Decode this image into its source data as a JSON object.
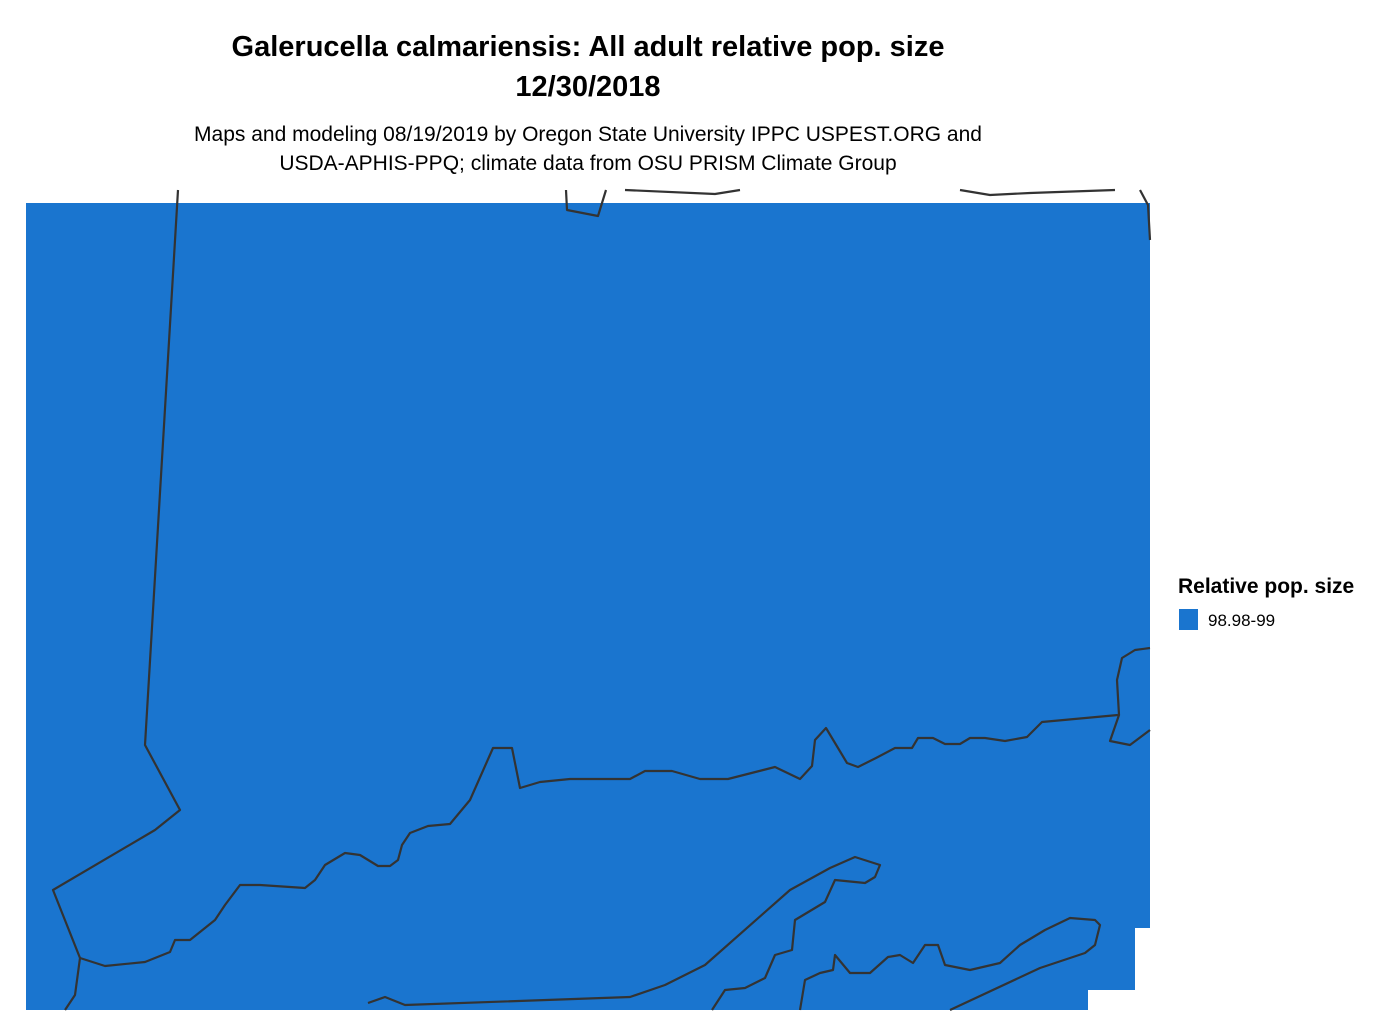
{
  "title": [
    "Galerucella calmariensis: All adult relative pop. size",
    "12/30/2018"
  ],
  "subtitle": [
    "Maps and modeling 08/19/2019 by Oregon State University IPPC USPEST.ORG and",
    "USDA-APHIS-PPQ; climate data from OSU PRISM Climate Group"
  ],
  "legend": {
    "title": "Relative pop. size",
    "items": [
      {
        "label": "98.98-99",
        "color": "#1a75cf"
      }
    ]
  }
}
